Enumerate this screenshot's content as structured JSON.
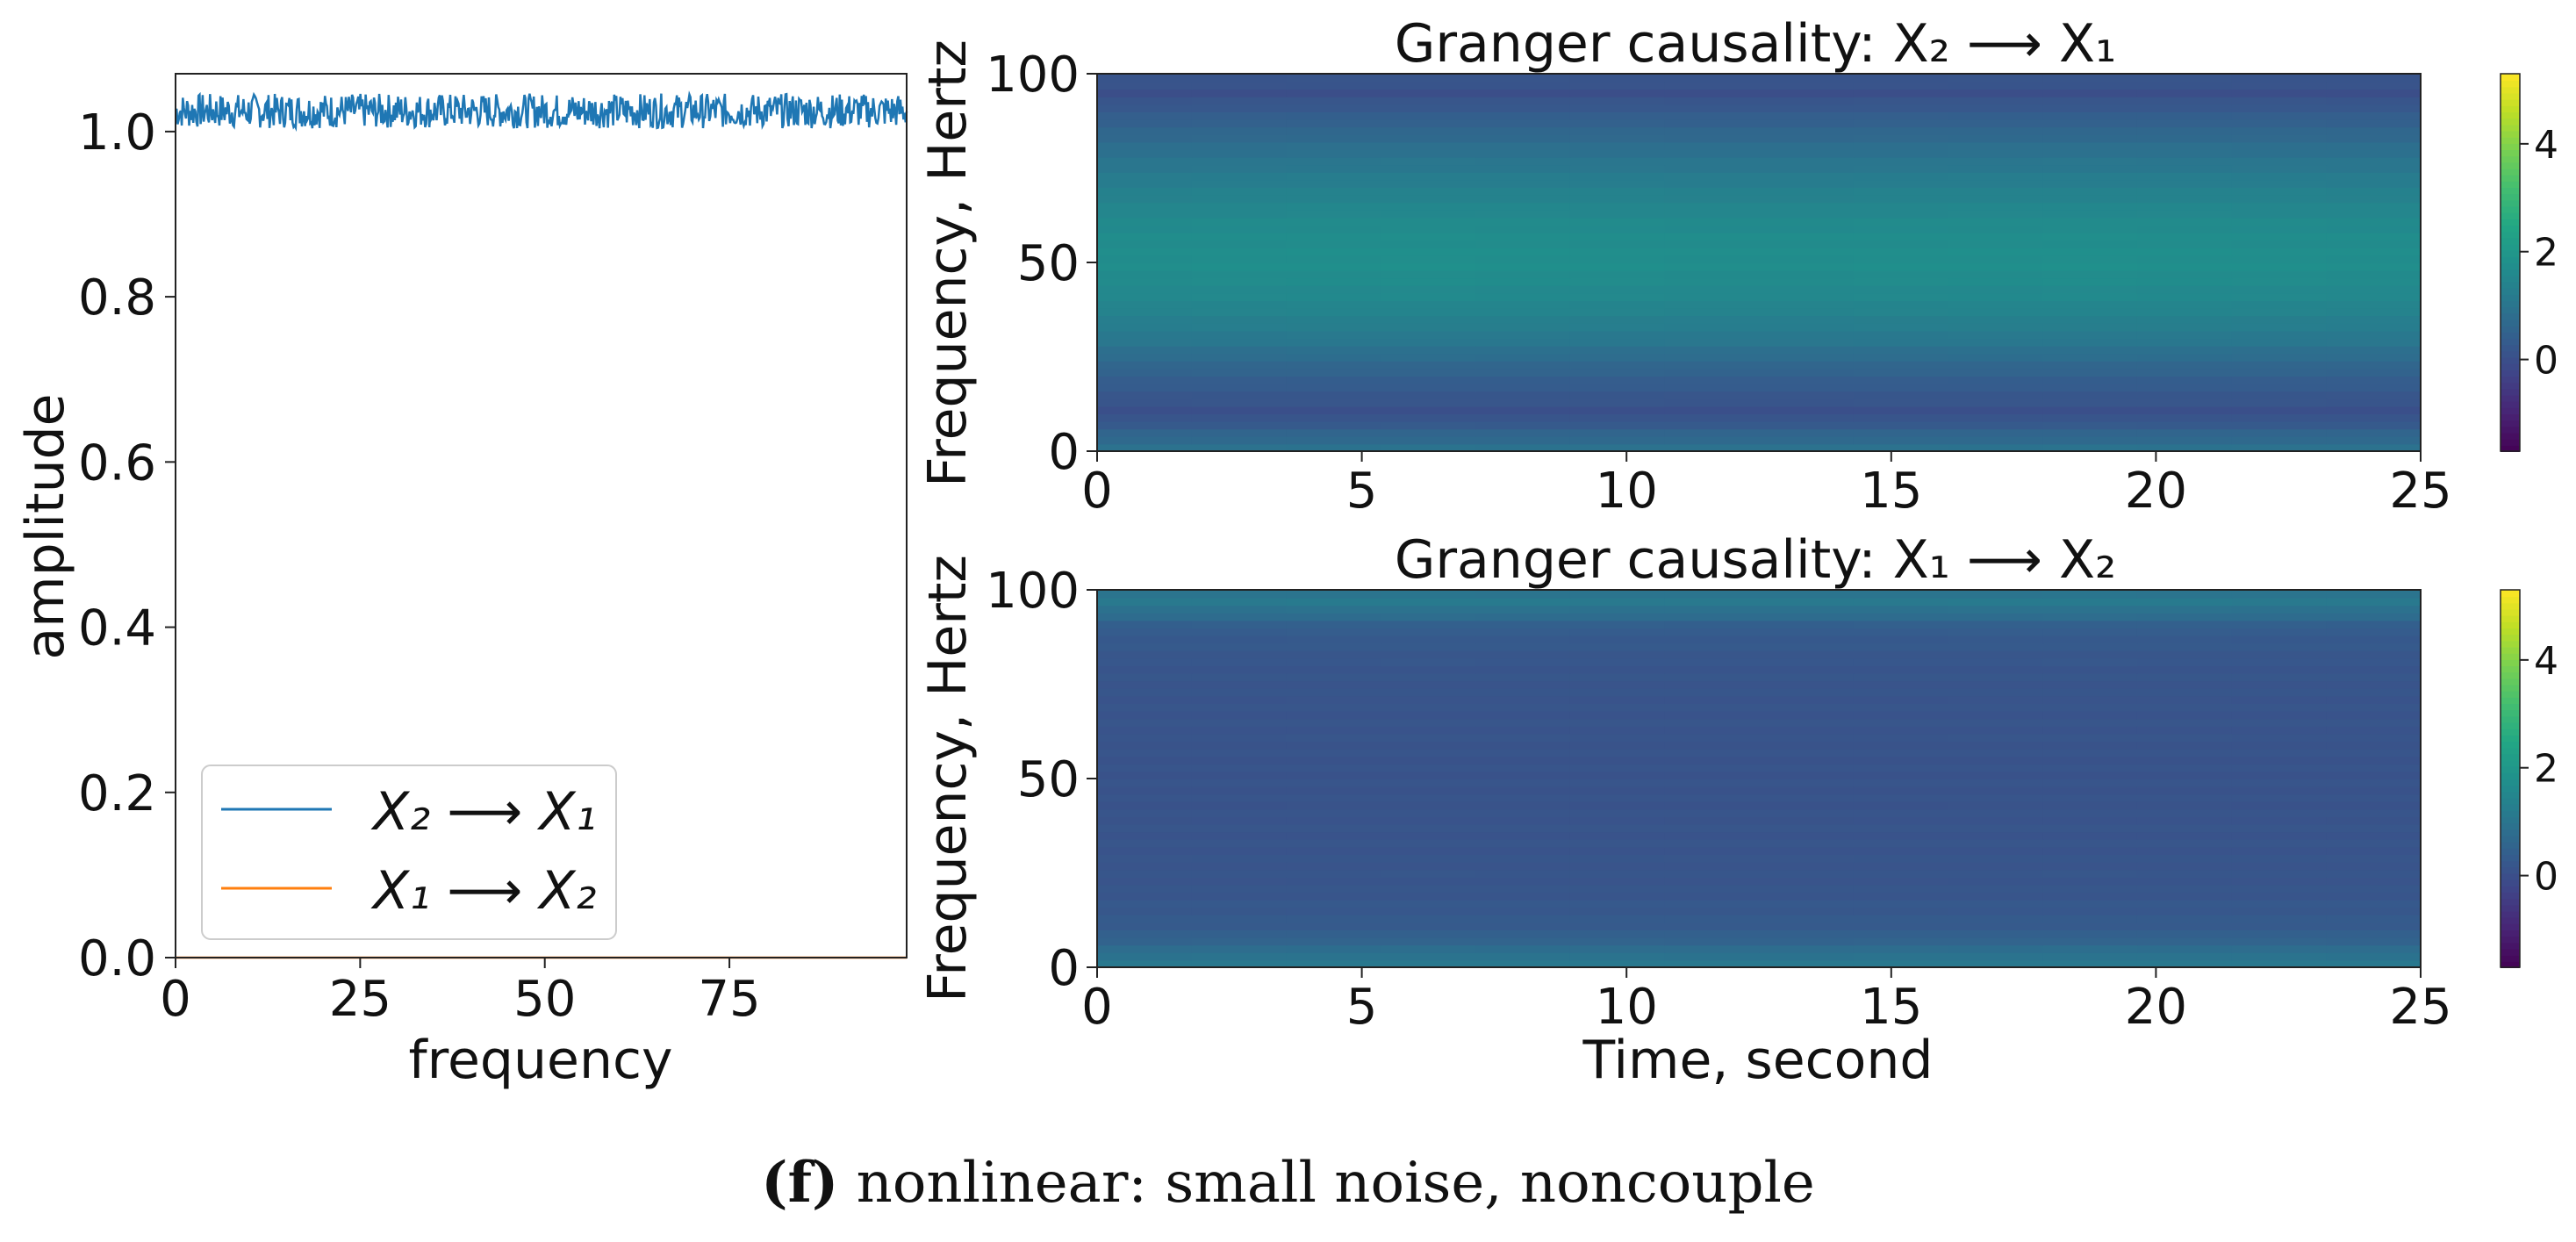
{
  "chart_data": [
    {
      "type": "line",
      "xlabel": "frequency",
      "ylabel": "amplitude",
      "xlim": [
        0,
        99
      ],
      "ylim": [
        0,
        1.07
      ],
      "xticks": [
        "0",
        "25",
        "50",
        "75"
      ],
      "yticks": [
        "0.0",
        "0.2",
        "0.4",
        "0.6",
        "0.8",
        "1.0"
      ],
      "legend_position": "lower-left",
      "series": [
        {
          "name": "X₂ ⟶ X₁",
          "color": "#1f77b4",
          "mean": 1.025,
          "noise": 0.015
        },
        {
          "name": "X₁ ⟶ X₂",
          "color": "#ff7f0e",
          "mean": 0.0,
          "noise": 0.0
        }
      ]
    },
    {
      "type": "heatmap",
      "title": "Granger causality: X₂ ⟶ X₁",
      "ylabel": "Frequency, Hertz",
      "xlabel": "",
      "xlim": [
        0,
        25
      ],
      "ylim": [
        0,
        100
      ],
      "xticks": [
        "0",
        "5",
        "10",
        "15",
        "20",
        "25"
      ],
      "yticks": [
        "0",
        "50",
        "100"
      ],
      "colorbar": {
        "range": [
          -1.7,
          5.3
        ],
        "ticks": [
          "0",
          "2",
          "4"
        ],
        "colormap": "viridis"
      },
      "frequency_profile": {
        "frequency": [
          0,
          5,
          10,
          20,
          30,
          40,
          50,
          60,
          70,
          80,
          90,
          95,
          100
        ],
        "value": [
          0.9,
          0.5,
          0.0,
          0.4,
          1.0,
          1.4,
          1.6,
          1.5,
          1.2,
          0.8,
          0.3,
          0.0,
          0.2
        ]
      }
    },
    {
      "type": "heatmap",
      "title": "Granger causality: X₁ ⟶ X₂",
      "ylabel": "Frequency, Hertz",
      "xlabel": "Time, second",
      "xlim": [
        0,
        25
      ],
      "ylim": [
        0,
        100
      ],
      "xticks": [
        "0",
        "5",
        "10",
        "15",
        "20",
        "25"
      ],
      "yticks": [
        "0",
        "50",
        "100"
      ],
      "colorbar": {
        "range": [
          -1.7,
          5.3
        ],
        "ticks": [
          "0",
          "2",
          "4"
        ],
        "colormap": "viridis"
      },
      "frequency_profile": {
        "frequency": [
          0,
          3,
          6,
          10,
          20,
          50,
          80,
          90,
          94,
          97,
          100
        ],
        "value": [
          1.0,
          0.9,
          0.6,
          0.3,
          0.15,
          0.1,
          0.15,
          0.3,
          0.8,
          1.0,
          0.9
        ]
      }
    }
  ],
  "caption": {
    "bold": "(f)",
    "text": " nonlinear: small noise, noncouple"
  }
}
